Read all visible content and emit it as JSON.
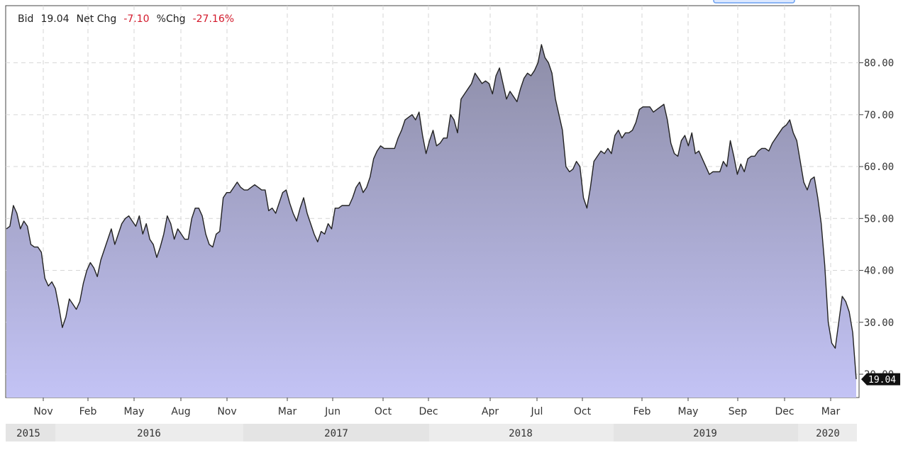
{
  "header": {
    "bid_label": "Bid",
    "bid_value": "19.04",
    "net_chg_label": "Net Chg",
    "net_chg_value": "-7.10",
    "pct_chg_label": "%Chg",
    "pct_chg_value": "-27.16%"
  },
  "colors": {
    "negative": "#d3192b",
    "line": "#222222",
    "area_top": "#8d8da7",
    "area_bottom": "#c3c3f5",
    "grid": "#d6d6d6",
    "year_band_dark": "#e4e4e4",
    "year_band_light": "#ececec"
  },
  "chart_data": {
    "type": "area",
    "title": "",
    "xlabel": "",
    "ylabel": "",
    "ylim": [
      15.5,
      91
    ],
    "yticks": [
      "80.00",
      "70.00",
      "60.00",
      "50.00",
      "40.00",
      "30.00",
      "20.00"
    ],
    "grid": true,
    "last_value_label": "19.04",
    "x_month_labels": [
      "Nov",
      "Feb",
      "May",
      "Aug",
      "Nov",
      "Mar",
      "Jun",
      "Oct",
      "Dec",
      "Apr",
      "Jul",
      "Oct",
      "Feb",
      "May",
      "Sep",
      "Dec",
      "Mar"
    ],
    "x_year_labels": [
      "2015",
      "2016",
      "2017",
      "2018",
      "2019",
      "2020"
    ],
    "series": [
      {
        "values": [
          48,
          48.5,
          52.5,
          51,
          48,
          49.5,
          48.5,
          45,
          44.5,
          44.5,
          43.5,
          38.5,
          37,
          37.8,
          36.5,
          33,
          29,
          31,
          34.5,
          33.5,
          32.5,
          34,
          37.5,
          40,
          41.5,
          40.5,
          38.8,
          42,
          44,
          46,
          48,
          45,
          47,
          49,
          50,
          50.5,
          49.5,
          48.5,
          50.5,
          47,
          49,
          46,
          45,
          42.5,
          44.5,
          47,
          50.5,
          49,
          46,
          48,
          47,
          46,
          46,
          50,
          52,
          52,
          50.5,
          47,
          45,
          44.5,
          47,
          47.5,
          54,
          55,
          55,
          56,
          57,
          56,
          55.5,
          55.5,
          56,
          56.5,
          56,
          55.5,
          55.5,
          51.5,
          52,
          51,
          53,
          55,
          55.5,
          53,
          51,
          49.5,
          52,
          54,
          51,
          49,
          47,
          45.5,
          47.5,
          47,
          49,
          48,
          52,
          52,
          52.5,
          52.5,
          52.5,
          54,
          56,
          57,
          55,
          56,
          58,
          61.5,
          63,
          64,
          63.5,
          63.5,
          63.5,
          63.5,
          65.5,
          67,
          69,
          69.5,
          70,
          69,
          70.5,
          66,
          62.5,
          65,
          67,
          64,
          64.5,
          65.5,
          65.5,
          70,
          69,
          66.5,
          73,
          74,
          75,
          76,
          78,
          77,
          76,
          76.5,
          76,
          74,
          77.5,
          79,
          76,
          73,
          74.5,
          73.5,
          72.5,
          75,
          77,
          78,
          77.5,
          78.5,
          80,
          83.5,
          81,
          80,
          78,
          73,
          70,
          67,
          60,
          59,
          59.5,
          61,
          60,
          54,
          52,
          56,
          61,
          62,
          63,
          62.5,
          63.5,
          62.5,
          66,
          67,
          65.5,
          66.5,
          66.5,
          67,
          68.5,
          71,
          71.5,
          71.5,
          71.5,
          70.5,
          71,
          71.5,
          72,
          69,
          64.5,
          62.5,
          62,
          65,
          66,
          64,
          66.5,
          62.5,
          63,
          61.5,
          60,
          58.5,
          59,
          59,
          59,
          61,
          60,
          65,
          62,
          58.5,
          60.5,
          59,
          61.5,
          62,
          62,
          63,
          63.5,
          63.5,
          63,
          64.5,
          65.5,
          66.5,
          67.5,
          68,
          69,
          66.5,
          65,
          61,
          57,
          55.5,
          57.5,
          58,
          54,
          49,
          41,
          30,
          26,
          25,
          30,
          35,
          34,
          32,
          28,
          19.04
        ]
      }
    ]
  }
}
